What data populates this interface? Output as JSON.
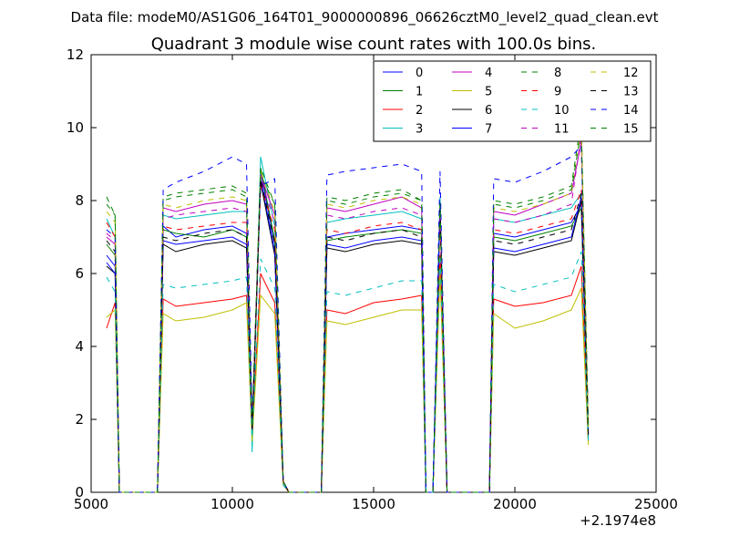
{
  "figure": {
    "supertitle": "Data file: modeM0/AS1G06_164T01_9000000896_06626cztM0_level2_quad_clean.evt",
    "title": "Quadrant 3 module wise count rates with 100.0s bins.",
    "x_offset_label": "+2.1974e8"
  },
  "chart_data": {
    "type": "line",
    "title": "Quadrant 3 module wise count rates with 100.0s bins.",
    "xlabel": "",
    "ylabel": "",
    "x_offset": 219740000,
    "xlim": [
      5000,
      25000
    ],
    "ylim": [
      0,
      12
    ],
    "xticks": [
      5000,
      10000,
      15000,
      20000,
      25000
    ],
    "yticks": [
      0,
      2,
      4,
      6,
      8,
      10,
      12
    ],
    "grid": false,
    "legend_position": "upper right",
    "legend_columns": 4,
    "x": [
      5550,
      5850,
      6000,
      7350,
      7550,
      8000,
      9000,
      10000,
      10500,
      10700,
      11000,
      11500,
      11800,
      12000,
      13150,
      13350,
      14000,
      15000,
      16000,
      16700,
      16850,
      17100,
      17350,
      17600,
      19100,
      19250,
      20000,
      21000,
      22000,
      22350,
      22600
    ],
    "series": [
      {
        "name": "0",
        "color": "#0000ff",
        "dash": "solid",
        "values": [
          6.5,
          6.2,
          0,
          0,
          7.3,
          7.0,
          7.2,
          7.3,
          7.1,
          1.8,
          8.8,
          6.8,
          0.3,
          0,
          0,
          7.0,
          7.1,
          7.2,
          7.3,
          7.2,
          0,
          0,
          8.0,
          0,
          0,
          7.1,
          7.0,
          7.2,
          7.4,
          7.9,
          1.6
        ]
      },
      {
        "name": "1",
        "color": "#008000",
        "dash": "solid",
        "values": [
          6.8,
          6.5,
          0,
          0,
          7.2,
          7.1,
          7.0,
          7.2,
          7.0,
          1.7,
          8.9,
          6.9,
          0.3,
          0,
          0,
          6.9,
          7.0,
          7.1,
          7.2,
          7.1,
          0,
          0,
          7.9,
          0,
          0,
          7.0,
          6.9,
          7.1,
          7.3,
          7.8,
          1.5
        ]
      },
      {
        "name": "2",
        "color": "#ff0000",
        "dash": "solid",
        "values": [
          4.5,
          5.2,
          0,
          0,
          5.3,
          5.1,
          5.2,
          5.3,
          5.4,
          1.5,
          6.0,
          5.2,
          0.2,
          0,
          0,
          5.0,
          4.9,
          5.2,
          5.3,
          5.4,
          0,
          0,
          6.5,
          0,
          0,
          5.3,
          5.1,
          5.2,
          5.4,
          6.2,
          1.4
        ]
      },
      {
        "name": "3",
        "color": "#00bfbf",
        "dash": "solid",
        "values": [
          7.5,
          7.0,
          0,
          0,
          7.6,
          7.5,
          7.6,
          7.7,
          7.7,
          1.1,
          9.2,
          7.3,
          0.3,
          0,
          0,
          7.4,
          7.5,
          7.6,
          7.7,
          7.5,
          0,
          0,
          8.1,
          0,
          0,
          7.5,
          7.4,
          7.6,
          7.8,
          8.2,
          1.7
        ]
      },
      {
        "name": "4",
        "color": "#bf00bf",
        "dash": "solid",
        "values": [
          7.0,
          6.8,
          0,
          0,
          7.8,
          7.7,
          7.9,
          8.0,
          7.9,
          1.9,
          8.7,
          7.6,
          0.3,
          0,
          0,
          7.8,
          7.7,
          7.9,
          8.1,
          7.8,
          0,
          0,
          7.8,
          0,
          0,
          7.7,
          7.6,
          7.9,
          8.2,
          9.6,
          1.8
        ]
      },
      {
        "name": "5",
        "color": "#bfbf00",
        "dash": "solid",
        "values": [
          4.8,
          5.0,
          0,
          0,
          4.9,
          4.7,
          4.8,
          5.0,
          5.2,
          1.4,
          5.4,
          4.9,
          0.2,
          0,
          0,
          4.7,
          4.6,
          4.8,
          5.0,
          5.0,
          0,
          0,
          6.0,
          0,
          0,
          4.9,
          4.5,
          4.7,
          5.0,
          5.6,
          1.3
        ]
      },
      {
        "name": "6",
        "color": "#000000",
        "dash": "solid",
        "values": [
          6.2,
          6.0,
          0,
          0,
          6.8,
          6.6,
          6.8,
          6.9,
          6.7,
          1.6,
          8.5,
          6.5,
          0.3,
          0,
          0,
          6.7,
          6.6,
          6.8,
          6.9,
          6.8,
          0,
          0,
          7.7,
          0,
          0,
          6.6,
          6.5,
          6.7,
          6.9,
          8.0,
          1.5
        ]
      },
      {
        "name": "7",
        "color": "#0000ff",
        "dash": "solid",
        "values": [
          6.3,
          6.0,
          0,
          0,
          6.9,
          6.8,
          6.9,
          7.0,
          6.8,
          1.7,
          8.6,
          6.6,
          0.3,
          0,
          0,
          6.8,
          6.7,
          6.9,
          7.0,
          6.9,
          0,
          0,
          7.8,
          0,
          0,
          6.7,
          6.6,
          6.8,
          7.0,
          8.1,
          1.6
        ]
      },
      {
        "name": "8",
        "color": "#008000",
        "dash": "dashed",
        "values": [
          8.1,
          7.6,
          0,
          0,
          8.1,
          8.2,
          8.3,
          8.4,
          8.2,
          1.8,
          8.9,
          7.9,
          0.3,
          0,
          0,
          8.1,
          8.0,
          8.2,
          8.3,
          8.0,
          0,
          0,
          8.0,
          0,
          0,
          8.0,
          7.9,
          8.1,
          8.4,
          10.2,
          1.8
        ]
      },
      {
        "name": "9",
        "color": "#ff0000",
        "dash": "dashed",
        "values": [
          7.4,
          7.0,
          0,
          0,
          7.3,
          7.2,
          7.3,
          7.4,
          7.4,
          1.8,
          8.4,
          7.2,
          0.3,
          0,
          0,
          7.2,
          7.1,
          7.3,
          7.4,
          7.2,
          0,
          0,
          7.5,
          0,
          0,
          7.2,
          7.1,
          7.3,
          7.5,
          8.3,
          1.7
        ]
      },
      {
        "name": "10",
        "color": "#00bfbf",
        "dash": "dashed",
        "values": [
          5.9,
          5.5,
          0,
          0,
          5.7,
          5.6,
          5.7,
          5.8,
          5.9,
          1.5,
          6.4,
          5.6,
          0.2,
          0,
          0,
          5.5,
          5.4,
          5.6,
          5.8,
          5.8,
          0,
          0,
          6.5,
          0,
          0,
          5.7,
          5.5,
          5.7,
          5.9,
          6.6,
          1.4
        ]
      },
      {
        "name": "11",
        "color": "#bf00bf",
        "dash": "dashed",
        "values": [
          7.1,
          6.9,
          0,
          0,
          7.5,
          7.6,
          7.7,
          7.8,
          7.7,
          1.8,
          8.6,
          7.4,
          0.3,
          0,
          0,
          7.6,
          7.5,
          7.7,
          7.8,
          7.6,
          0,
          0,
          7.7,
          0,
          0,
          7.5,
          7.4,
          7.6,
          7.9,
          9.8,
          1.7
        ]
      },
      {
        "name": "12",
        "color": "#bfbf00",
        "dash": "dashed",
        "values": [
          7.7,
          7.4,
          0,
          0,
          7.9,
          7.8,
          8.0,
          8.1,
          8.0,
          1.9,
          8.8,
          7.7,
          0.3,
          0,
          0,
          7.9,
          7.8,
          8.0,
          8.1,
          7.9,
          0,
          0,
          7.9,
          0,
          0,
          7.8,
          7.7,
          7.9,
          8.2,
          10.0,
          1.8
        ]
      },
      {
        "name": "13",
        "color": "#000000",
        "dash": "dashed",
        "values": [
          6.9,
          6.6,
          0,
          0,
          7.0,
          6.9,
          7.1,
          7.2,
          7.0,
          1.7,
          8.6,
          6.8,
          0.3,
          0,
          0,
          7.0,
          6.9,
          7.1,
          7.2,
          7.0,
          0,
          0,
          7.8,
          0,
          0,
          6.9,
          6.8,
          7.0,
          7.2,
          8.2,
          1.6
        ]
      },
      {
        "name": "14",
        "color": "#0000ff",
        "dash": "dashed",
        "values": [
          7.2,
          7.0,
          0,
          0,
          8.3,
          8.5,
          8.8,
          9.2,
          9.0,
          2.0,
          8.4,
          8.6,
          0.3,
          0,
          0,
          8.7,
          8.8,
          8.9,
          9.0,
          8.8,
          0,
          0,
          8.8,
          0,
          0,
          8.6,
          8.5,
          8.8,
          9.2,
          9.5,
          1.9
        ]
      },
      {
        "name": "15",
        "color": "#008000",
        "dash": "dashed",
        "values": [
          7.9,
          7.6,
          0,
          0,
          8.0,
          8.1,
          8.2,
          8.3,
          8.1,
          1.8,
          8.7,
          7.9,
          0.3,
          0,
          0,
          8.0,
          7.9,
          8.1,
          8.2,
          8.0,
          0,
          0,
          7.9,
          0,
          0,
          7.9,
          7.8,
          8.0,
          8.3,
          9.9,
          1.8
        ]
      }
    ]
  }
}
